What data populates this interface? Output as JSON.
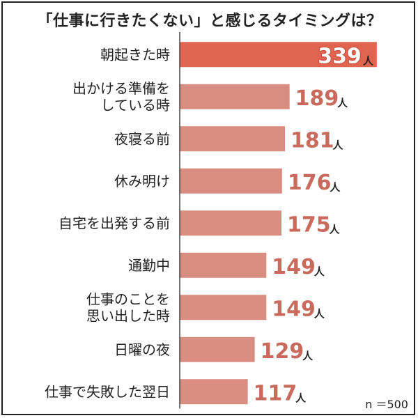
{
  "chart_data": {
    "type": "bar",
    "orientation": "horizontal",
    "title": "「仕事に行きたくない」と感じるタイミングは？",
    "unit": "人",
    "sample_label": "n ＝500",
    "categories": [
      [
        "朝起きた時"
      ],
      [
        "出かける準備を",
        "している時"
      ],
      [
        "夜寝る前"
      ],
      [
        "休み明け"
      ],
      [
        "自宅を出発する前"
      ],
      [
        "通勤中"
      ],
      [
        "仕事のことを",
        "思い出した時"
      ],
      [
        "日曜の夜"
      ],
      [
        "仕事で失敗した翌日"
      ]
    ],
    "values": [
      339,
      189,
      181,
      176,
      175,
      149,
      149,
      129,
      117
    ],
    "value_labels": [
      "339",
      "189",
      "181",
      "176",
      "175",
      "149",
      "149",
      "129",
      "117"
    ],
    "xlim": [
      0,
      350
    ],
    "highlight_index": 0,
    "colors": {
      "highlight_bar": "#e0644f",
      "bar": "#d98c80",
      "highlight_text": "#ffffff",
      "highlight_text_stroke": "#c94a3a",
      "value_text": "#c96a5c",
      "axis": "#444444"
    }
  }
}
